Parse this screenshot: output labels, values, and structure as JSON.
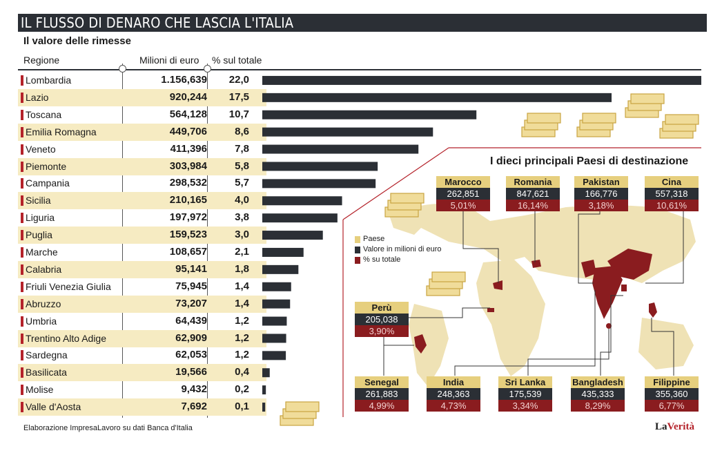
{
  "header": {
    "title": "IL FLUSSO DI DENARO CHE LASCIA L'ITALIA",
    "subtitle": "Il valore delle rimesse"
  },
  "table": {
    "col_region": "Regione",
    "col_value": "Milioni di euro",
    "col_pct": "% sul totale"
  },
  "chart_data": [
    {
      "type": "bar",
      "title": "Il valore delle rimesse",
      "categories": [
        "Lombardia",
        "Lazio",
        "Toscana",
        "Emilia Romagna",
        "Veneto",
        "Piemonte",
        "Campania",
        "Sicilia",
        "Liguria",
        "Puglia",
        "Marche",
        "Calabria",
        "Friuli Venezia Giulia",
        "Abruzzo",
        "Umbria",
        "Trentino Alto Adige",
        "Sardegna",
        "Basilicata",
        "Molise",
        "Valle d'Aosta"
      ],
      "value_labels": [
        "1.156,639",
        "920,244",
        "564,128",
        "449,706",
        "411,396",
        "303,984",
        "298,532",
        "210,165",
        "197,972",
        "159,523",
        "108,657",
        "95,141",
        "75,945",
        "73,207",
        "64,439",
        "62,909",
        "62,053",
        "19,566",
        "9,432",
        "7,692"
      ],
      "pct_labels": [
        "22,0",
        "17,5",
        "10,7",
        "8,6",
        "7,8",
        "5,8",
        "5,7",
        "4,0",
        "3,8",
        "3,0",
        "2,1",
        "1,8",
        "1,4",
        "1,4",
        "1,2",
        "1,2",
        "1,2",
        "0,4",
        "0,2",
        "0,1"
      ],
      "series": [
        {
          "values": [
            1156.639,
            920.244,
            564.128,
            449.706,
            411.396,
            303.984,
            298.532,
            210.165,
            197.972,
            159.523,
            108.657,
            95.141,
            75.945,
            73.207,
            64.439,
            62.909,
            62.053,
            19.566,
            9.432,
            7.692
          ]
        }
      ],
      "colors": {
        "bar": "#2b2f35",
        "marker": "#b4222a",
        "row_alt": "#f6ebc2"
      }
    },
    {
      "type": "table",
      "title": "I dieci principali Paesi di destinazione",
      "legend": [
        "Paese",
        "Valore in milioni di euro",
        "% su totale"
      ],
      "countries": [
        {
          "name": "Marocco",
          "value": "262,851",
          "pct": "5,01%"
        },
        {
          "name": "Romania",
          "value": "847,621",
          "pct": "16,14%"
        },
        {
          "name": "Pakistan",
          "value": "166,776",
          "pct": "3,18%"
        },
        {
          "name": "Cina",
          "value": "557,318",
          "pct": "10,61%"
        },
        {
          "name": "Perù",
          "value": "205,038",
          "pct": "3,90%"
        },
        {
          "name": "Senegal",
          "value": "261,883",
          "pct": "4,99%"
        },
        {
          "name": "India",
          "value": "248,363",
          "pct": "4,73%"
        },
        {
          "name": "Sri Lanka",
          "value": "175,539",
          "pct": "3,34%"
        },
        {
          "name": "Bangladesh",
          "value": "435,333",
          "pct": "8,29%"
        },
        {
          "name": "Filippine",
          "value": "355,360",
          "pct": "6,77%"
        }
      ],
      "colors": {
        "name_bg": "#e6cf7e",
        "value_bg": "#2b2f35",
        "pct_bg": "#8a1c1f",
        "map_land": "#efe2b5",
        "map_highlight": "#8a1c1f"
      }
    }
  ],
  "footer": {
    "source": "Elaborazione ImpresaLavoro su dati Banca d'Italia",
    "brand_a": "La",
    "brand_b": "Verità"
  },
  "icons": [
    "money-stack-icon"
  ]
}
